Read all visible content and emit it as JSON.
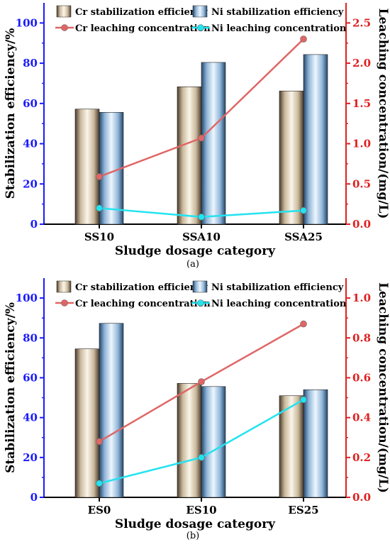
{
  "colors": {
    "left_axis": "#1a1aff",
    "right_axis": "#e02020",
    "cr_line": "#e06666",
    "ni_line": "#22e3f0"
  },
  "legend": {
    "cr_stab": "Cr stabilization efficiency",
    "ni_stab": "Ni stabilization efficiency",
    "cr_leach": "Cr leaching concentration",
    "ni_leach": "Ni leaching concentration"
  },
  "chart_data": [
    {
      "type": "bar",
      "caption": "(a)",
      "xlabel": "Sludge dosage category",
      "ylabel": "Stabilization efficiency/%",
      "y2label": "Leaching concentration/(mg/L)",
      "categories": [
        "SS10",
        "SSA10",
        "SSA25"
      ],
      "ylim": [
        0,
        110
      ],
      "yticks": [
        0,
        20,
        40,
        60,
        80,
        100
      ],
      "y2lim": [
        0,
        2.75
      ],
      "y2ticks": [
        "0.0",
        "0.5",
        "1.0",
        "1.5",
        "2.0",
        "2.5"
      ],
      "series": [
        {
          "name": "Cr stabilization efficiency",
          "type": "bar",
          "axis": "left",
          "values": [
            57.2,
            68.3,
            66.2
          ]
        },
        {
          "name": "Ni stabilization efficiency",
          "type": "bar",
          "axis": "left",
          "values": [
            55.6,
            80.4,
            84.3
          ]
        },
        {
          "name": "Cr leaching concentration",
          "type": "line",
          "axis": "right",
          "values": [
            0.59,
            1.07,
            2.3
          ]
        },
        {
          "name": "Ni leaching concentration",
          "type": "line",
          "axis": "right",
          "values": [
            0.2,
            0.09,
            0.17
          ]
        }
      ]
    },
    {
      "type": "bar",
      "caption": "(b)",
      "xlabel": "Sludge dosage category",
      "ylabel": "Stabilization efficiency/%",
      "y2label": "Leaching concentration/(mg/L)",
      "categories": [
        "ES0",
        "ES10",
        "ES25"
      ],
      "ylim": [
        0,
        110
      ],
      "yticks": [
        0,
        20,
        40,
        60,
        80,
        100
      ],
      "y2lim": [
        0,
        1.1
      ],
      "y2ticks": [
        "0.0",
        "0.2",
        "0.4",
        "0.6",
        "0.8",
        "1.0"
      ],
      "series": [
        {
          "name": "Cr stabilization efficiency",
          "type": "bar",
          "axis": "left",
          "values": [
            74.5,
            57.2,
            51.0
          ]
        },
        {
          "name": "Ni stabilization efficiency",
          "type": "bar",
          "axis": "left",
          "values": [
            87.3,
            55.6,
            54.0
          ]
        },
        {
          "name": "Cr leaching concentration",
          "type": "line",
          "axis": "right",
          "values": [
            0.28,
            0.58,
            0.87
          ]
        },
        {
          "name": "Ni leaching concentration",
          "type": "line",
          "axis": "right",
          "values": [
            0.07,
            0.2,
            0.49
          ]
        }
      ]
    }
  ]
}
